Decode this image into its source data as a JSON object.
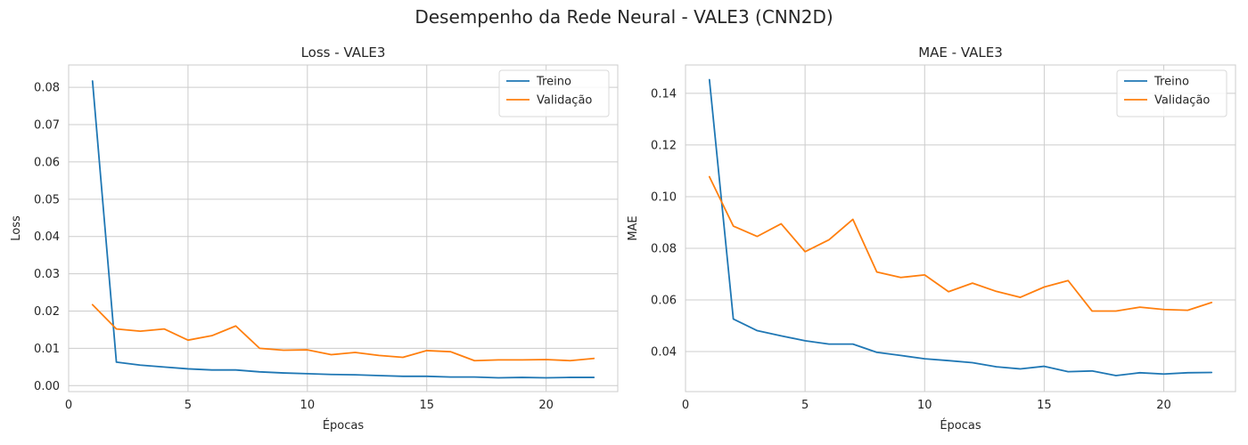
{
  "suptitle": "Desempenho da Rede Neural - VALE3 (CNN2D)",
  "colors": {
    "train": "#1f77b4",
    "val": "#ff7f0e",
    "grid": "#cccccc",
    "text": "#262626"
  },
  "chart_data": [
    {
      "type": "line",
      "title": "Loss - VALE3",
      "xlabel": "Épocas",
      "ylabel": "Loss",
      "xlim": [
        0,
        23
      ],
      "ylim": [
        -0.0016,
        0.086
      ],
      "xticks": [
        0,
        5,
        10,
        15,
        20
      ],
      "xtick_labels": [
        "0",
        "5",
        "10",
        "15",
        "20"
      ],
      "yticks": [
        0,
        0.01,
        0.02,
        0.03,
        0.04,
        0.05,
        0.06,
        0.07,
        0.08
      ],
      "ytick_labels": [
        "0.00",
        "0.01",
        "0.02",
        "0.03",
        "0.04",
        "0.05",
        "0.06",
        "0.07",
        "0.08"
      ],
      "grid": true,
      "legend_position": "top-right",
      "x": [
        1,
        2,
        3,
        4,
        5,
        6,
        7,
        8,
        9,
        10,
        11,
        12,
        13,
        14,
        15,
        16,
        17,
        18,
        19,
        20,
        21,
        22
      ],
      "series": [
        {
          "name": "Treino",
          "color": "#1f77b4",
          "values": [
            0.0817,
            0.0063,
            0.0055,
            0.005,
            0.0045,
            0.0042,
            0.0042,
            0.0037,
            0.0034,
            0.0032,
            0.003,
            0.0029,
            0.0027,
            0.0025,
            0.0025,
            0.0023,
            0.0023,
            0.0021,
            0.0022,
            0.0021,
            0.0022,
            0.0022
          ]
        },
        {
          "name": "Validação",
          "color": "#ff7f0e",
          "values": [
            0.0217,
            0.0152,
            0.0146,
            0.0152,
            0.0122,
            0.0134,
            0.016,
            0.01,
            0.0095,
            0.0096,
            0.0083,
            0.0089,
            0.0081,
            0.0076,
            0.0094,
            0.0091,
            0.0067,
            0.0069,
            0.0069,
            0.007,
            0.0067,
            0.0073
          ]
        }
      ]
    },
    {
      "type": "line",
      "title": "MAE - VALE3",
      "xlabel": "Épocas",
      "ylabel": "MAE",
      "xlim": [
        0,
        23
      ],
      "ylim": [
        0.0245,
        0.151
      ],
      "xticks": [
        0,
        5,
        10,
        15,
        20
      ],
      "xtick_labels": [
        "0",
        "5",
        "10",
        "15",
        "20"
      ],
      "yticks": [
        0.04,
        0.06,
        0.08,
        0.1,
        0.12,
        0.14
      ],
      "ytick_labels": [
        "0.04",
        "0.06",
        "0.08",
        "0.10",
        "0.12",
        "0.14"
      ],
      "grid": true,
      "legend_position": "top-right",
      "x": [
        1,
        2,
        3,
        4,
        5,
        6,
        7,
        8,
        9,
        10,
        11,
        12,
        13,
        14,
        15,
        16,
        17,
        18,
        19,
        20,
        21,
        22
      ],
      "series": [
        {
          "name": "Treino",
          "color": "#1f77b4",
          "values": [
            0.1453,
            0.0526,
            0.0481,
            0.0461,
            0.0442,
            0.0429,
            0.0429,
            0.0397,
            0.0385,
            0.0372,
            0.0365,
            0.0357,
            0.0341,
            0.0333,
            0.0343,
            0.0322,
            0.0325,
            0.0307,
            0.0318,
            0.0313,
            0.0318,
            0.0319
          ]
        },
        {
          "name": "Validação",
          "color": "#ff7f0e",
          "values": [
            0.1077,
            0.0886,
            0.0846,
            0.0895,
            0.0787,
            0.0833,
            0.0912,
            0.0708,
            0.0687,
            0.0697,
            0.0632,
            0.0665,
            0.0633,
            0.061,
            0.065,
            0.0675,
            0.0557,
            0.0557,
            0.0572,
            0.0563,
            0.056,
            0.059
          ]
        }
      ]
    }
  ]
}
